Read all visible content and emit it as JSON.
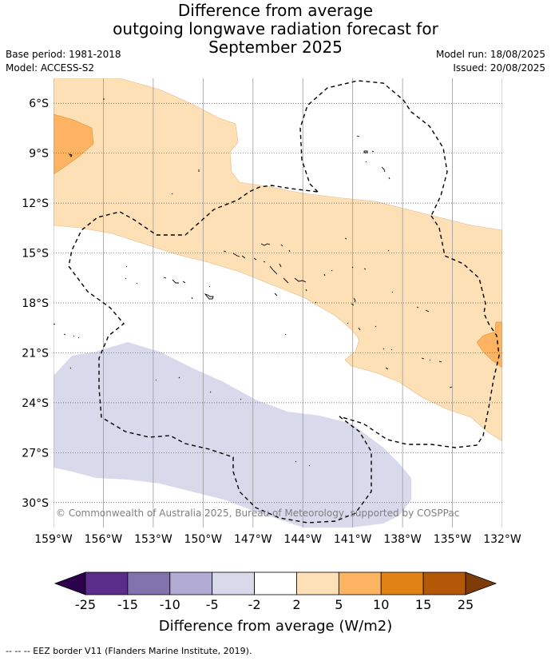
{
  "title": {
    "line1": "Difference from average",
    "line2": "outgoing longwave radiation forecast for",
    "line3": "September 2025"
  },
  "meta": {
    "base_period": "Base period: 1981-2018",
    "model": "Model: ACCESS-S2",
    "model_run": "Model run: 18/08/2025",
    "issued": "Issued: 20/08/2025"
  },
  "map": {
    "lon_range": [
      -159,
      -132
    ],
    "lat_range": [
      -31.5,
      -4.5
    ],
    "lon_ticks": [
      {
        "v": -159,
        "label": "159°W"
      },
      {
        "v": -156,
        "label": "156°W"
      },
      {
        "v": -153,
        "label": "153°W"
      },
      {
        "v": -150,
        "label": "150°W"
      },
      {
        "v": -147,
        "label": "147°W"
      },
      {
        "v": -144,
        "label": "144°W"
      },
      {
        "v": -141,
        "label": "141°W"
      },
      {
        "v": -138,
        "label": "138°W"
      },
      {
        "v": -135,
        "label": "135°W"
      },
      {
        "v": -132,
        "label": "132°W"
      }
    ],
    "lat_ticks": [
      {
        "v": -6,
        "label": "6°S"
      },
      {
        "v": -9,
        "label": "9°S"
      },
      {
        "v": -12,
        "label": "12°S"
      },
      {
        "v": -15,
        "label": "15°S"
      },
      {
        "v": -18,
        "label": "18°S"
      },
      {
        "v": -21,
        "label": "21°S"
      },
      {
        "v": -24,
        "label": "24°S"
      },
      {
        "v": -27,
        "label": "27°S"
      },
      {
        "v": -30,
        "label": "30°S"
      }
    ],
    "grid": true,
    "copyright": "© Commonwealth of Australia 2025, Bureau of Meteorology, supported by COSPPac"
  },
  "colorbar": {
    "title": "Difference from average (W/m2)",
    "boundaries": [
      "-25",
      "-15",
      "-10",
      "-5",
      "-2",
      "2",
      "5",
      "10",
      "15",
      "25"
    ],
    "colors": [
      "#5a2d8a",
      "#8272ad",
      "#b1aad2",
      "#d8d9eb",
      "#ffffff",
      "#fde0b6",
      "#fdb462",
      "#e08214",
      "#b35806"
    ],
    "under_color": "#2d004b",
    "over_color": "#7f3b08"
  },
  "footnote": "--  --  -- EEZ border V11 (Flanders Marine Institute, 2019)."
}
